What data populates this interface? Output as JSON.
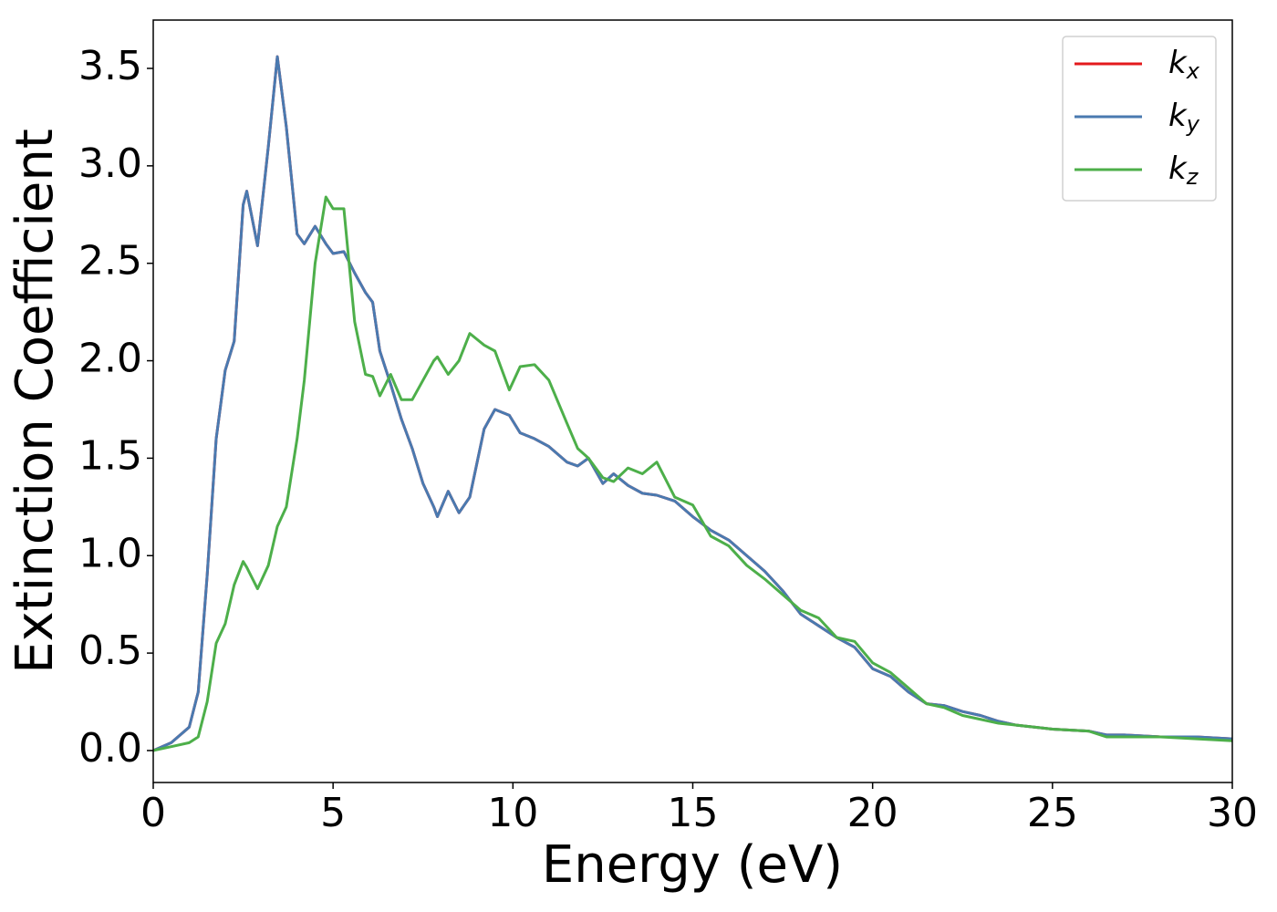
{
  "chart_data": {
    "type": "line",
    "xlabel": "Energy (eV)",
    "ylabel": "Extinction Coefficient",
    "x": [
      0,
      0.5,
      1.0,
      1.25,
      1.5,
      1.75,
      2.0,
      2.25,
      2.5,
      2.6,
      2.9,
      3.2,
      3.45,
      3.7,
      4.0,
      4.2,
      4.5,
      4.8,
      5.0,
      5.3,
      5.6,
      5.9,
      6.1,
      6.3,
      6.6,
      6.9,
      7.2,
      7.5,
      7.8,
      7.9,
      8.2,
      8.5,
      8.8,
      9.2,
      9.5,
      9.9,
      10.2,
      10.6,
      11.0,
      11.5,
      11.8,
      12.1,
      12.5,
      12.8,
      13.2,
      13.6,
      14.0,
      14.5,
      15.0,
      15.5,
      16.0,
      16.5,
      17.0,
      17.5,
      18.0,
      18.5,
      19.0,
      19.5,
      20.0,
      20.5,
      21.0,
      21.5,
      22.0,
      22.5,
      23.0,
      23.5,
      24.0,
      25.0,
      26.0,
      26.5,
      27.0,
      28.0,
      29.0,
      30.0
    ],
    "series": [
      {
        "name": "k_x",
        "color": "#e41a1c",
        "values": [
          0,
          0.04,
          0.12,
          0.3,
          0.9,
          1.6,
          1.95,
          2.1,
          2.8,
          2.87,
          2.59,
          3.1,
          3.56,
          3.2,
          2.65,
          2.6,
          2.69,
          2.6,
          2.55,
          2.56,
          2.45,
          2.35,
          2.3,
          2.05,
          1.88,
          1.7,
          1.55,
          1.37,
          1.25,
          1.2,
          1.33,
          1.22,
          1.3,
          1.65,
          1.75,
          1.72,
          1.63,
          1.6,
          1.56,
          1.48,
          1.46,
          1.5,
          1.37,
          1.42,
          1.36,
          1.32,
          1.31,
          1.28,
          1.2,
          1.13,
          1.08,
          1.0,
          0.92,
          0.82,
          0.7,
          0.64,
          0.58,
          0.53,
          0.42,
          0.38,
          0.3,
          0.24,
          0.23,
          0.2,
          0.18,
          0.15,
          0.13,
          0.11,
          0.1,
          0.08,
          0.08,
          0.07,
          0.07,
          0.06
        ]
      },
      {
        "name": "k_y",
        "color": "#4a7ab0",
        "values": [
          0,
          0.04,
          0.12,
          0.3,
          0.9,
          1.6,
          1.95,
          2.1,
          2.8,
          2.87,
          2.59,
          3.1,
          3.56,
          3.2,
          2.65,
          2.6,
          2.69,
          2.6,
          2.55,
          2.56,
          2.45,
          2.35,
          2.3,
          2.05,
          1.88,
          1.7,
          1.55,
          1.37,
          1.25,
          1.2,
          1.33,
          1.22,
          1.3,
          1.65,
          1.75,
          1.72,
          1.63,
          1.6,
          1.56,
          1.48,
          1.46,
          1.5,
          1.37,
          1.42,
          1.36,
          1.32,
          1.31,
          1.28,
          1.2,
          1.13,
          1.08,
          1.0,
          0.92,
          0.82,
          0.7,
          0.64,
          0.58,
          0.53,
          0.42,
          0.38,
          0.3,
          0.24,
          0.23,
          0.2,
          0.18,
          0.15,
          0.13,
          0.11,
          0.1,
          0.08,
          0.08,
          0.07,
          0.07,
          0.06
        ]
      },
      {
        "name": "k_z",
        "color": "#4daf4a",
        "values": [
          0,
          0.02,
          0.04,
          0.07,
          0.25,
          0.55,
          0.65,
          0.85,
          0.97,
          0.94,
          0.83,
          0.95,
          1.15,
          1.25,
          1.6,
          1.9,
          2.5,
          2.84,
          2.78,
          2.78,
          2.2,
          1.93,
          1.92,
          1.82,
          1.93,
          1.8,
          1.8,
          1.9,
          2.0,
          2.02,
          1.93,
          2.0,
          2.14,
          2.08,
          2.05,
          1.85,
          1.97,
          1.98,
          1.9,
          1.68,
          1.55,
          1.5,
          1.4,
          1.38,
          1.45,
          1.42,
          1.48,
          1.3,
          1.26,
          1.1,
          1.05,
          0.95,
          0.88,
          0.8,
          0.72,
          0.68,
          0.58,
          0.56,
          0.45,
          0.4,
          0.32,
          0.24,
          0.22,
          0.18,
          0.16,
          0.14,
          0.13,
          0.11,
          0.1,
          0.07,
          0.07,
          0.07,
          0.06,
          0.05
        ]
      }
    ],
    "xlim": [
      0,
      30
    ],
    "xticks": [
      0,
      5,
      10,
      15,
      20,
      25,
      30
    ],
    "ylim": [
      -0.164,
      3.748
    ],
    "yticks": [
      {
        "value": 0,
        "label": "0.0"
      },
      0.5,
      {
        "value": 1,
        "label": "1.0"
      },
      1.5,
      {
        "value": 2,
        "label": "2.0"
      },
      2.5,
      {
        "value": 3,
        "label": "3.0"
      },
      3.5
    ],
    "grid": false,
    "legend": "upper right"
  }
}
